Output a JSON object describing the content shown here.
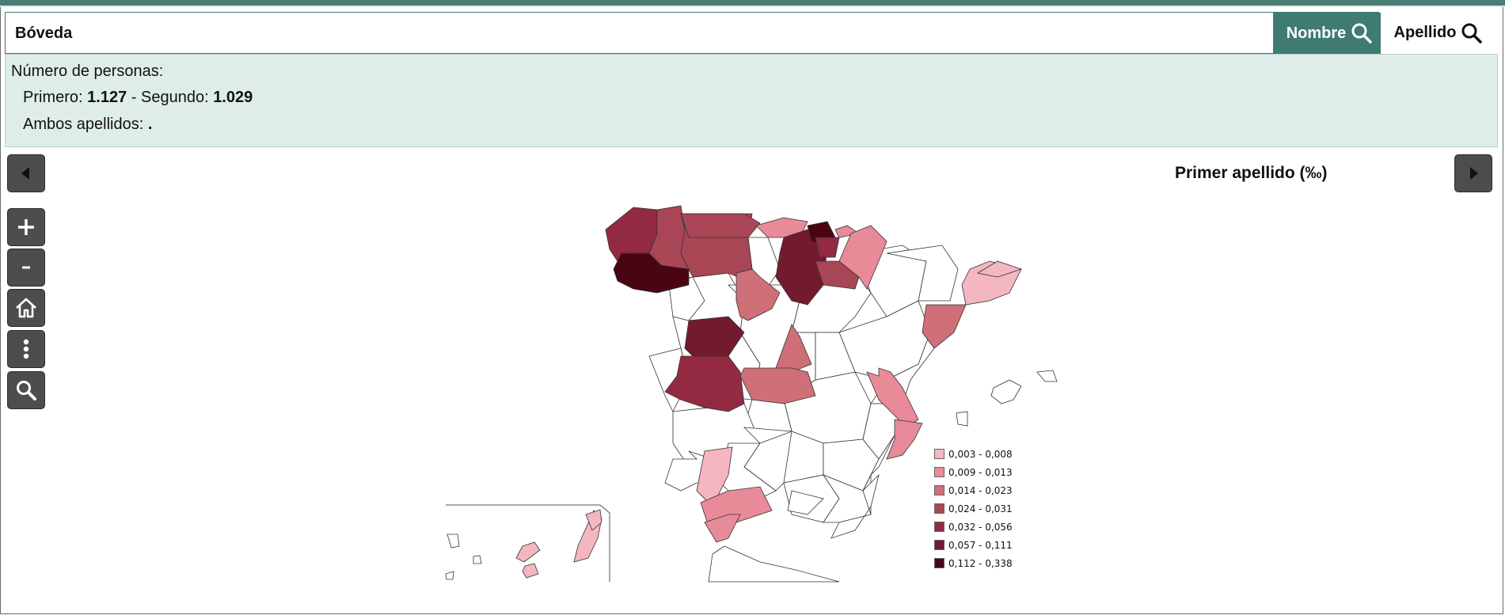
{
  "search": {
    "value": "Bóveda"
  },
  "buttons": {
    "nombre": "Nombre",
    "apellido": "Apellido"
  },
  "info": {
    "count_label": "Número de personas:",
    "primero_label": "Primero:",
    "primero_value": "1.127",
    "sep": " - ",
    "segundo_label": "Segundo:",
    "segundo_value": "1.029",
    "ambos_label": "Ambos apellidos:",
    "ambos_value": "."
  },
  "map": {
    "title": "Primer apellido (‰)",
    "legend": [
      {
        "label": "0,003 - 0,008",
        "color": "#f4b6c1"
      },
      {
        "label": "0,009 - 0,013",
        "color": "#e98a99"
      },
      {
        "label": "0,014 - 0,023",
        "color": "#cf6f78"
      },
      {
        "label": "0,024 - 0,031",
        "color": "#a94656"
      },
      {
        "label": "0,032 - 0,056",
        "color": "#932a42"
      },
      {
        "label": "0,057 - 0,111",
        "color": "#741a2f"
      },
      {
        "label": "0,112 - 0,338",
        "color": "#4a0514"
      }
    ]
  },
  "controls": {
    "prev": "prev-arrow-icon",
    "next": "next-arrow-icon",
    "zoom_in": "plus-icon",
    "zoom_out": "minus-icon",
    "home": "home-icon",
    "more": "more-vertical-icon",
    "search": "search-icon"
  },
  "colors": {
    "accent": "#3f7b70",
    "info_bg": "#dfedea",
    "control_bg": "#4d4d4d"
  }
}
